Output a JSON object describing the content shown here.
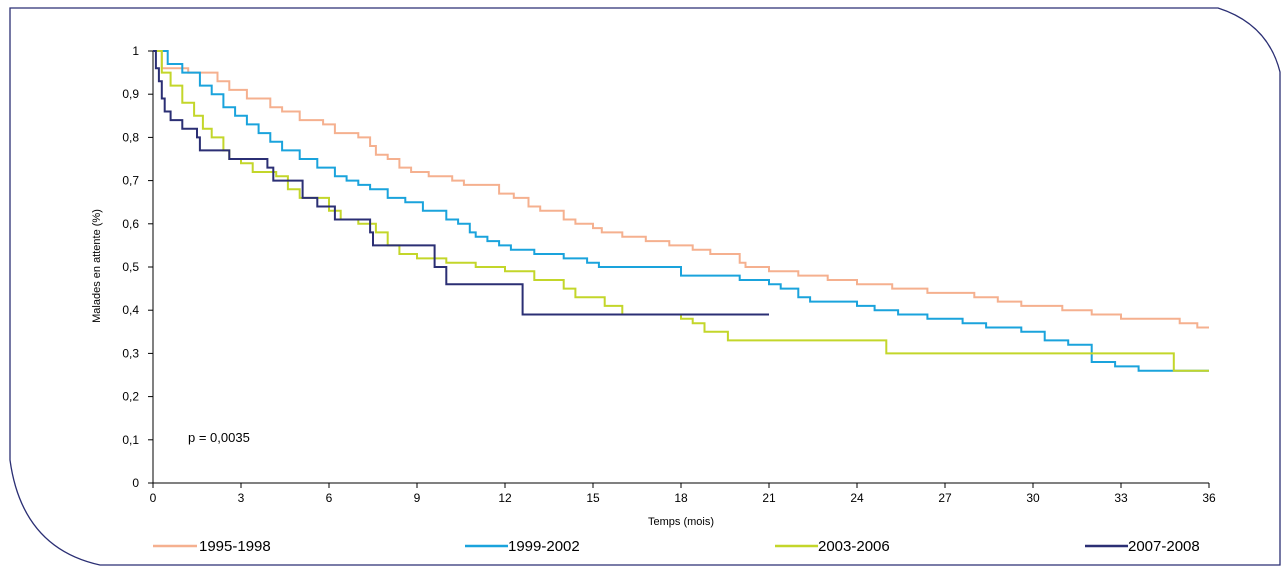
{
  "chart_data": {
    "type": "line",
    "step": true,
    "xlabel": "Temps (mois)",
    "ylabel": "Malades en attente (%)",
    "xlim": [
      0,
      36
    ],
    "ylim": [
      0,
      1
    ],
    "xticks": [
      "0",
      "3",
      "6",
      "9",
      "12",
      "15",
      "18",
      "21",
      "24",
      "27",
      "30",
      "33",
      "36"
    ],
    "yticks": [
      "0",
      "0,1",
      "0,2",
      "0,3",
      "0,4",
      "0,5",
      "0,6",
      "0,7",
      "0,8",
      "0,9",
      "1"
    ],
    "annotation": "p = 0,0035",
    "grid": false,
    "legend_position": "bottom",
    "series": [
      {
        "name": "1995-1998",
        "color": "#f5b08f",
        "points": [
          [
            0,
            1
          ],
          [
            0.3,
            0.96
          ],
          [
            1.2,
            0.95
          ],
          [
            2.2,
            0.93
          ],
          [
            2.6,
            0.91
          ],
          [
            3.2,
            0.89
          ],
          [
            4,
            0.87
          ],
          [
            4.4,
            0.86
          ],
          [
            5,
            0.84
          ],
          [
            5.8,
            0.83
          ],
          [
            6.2,
            0.81
          ],
          [
            7,
            0.8
          ],
          [
            7.4,
            0.78
          ],
          [
            7.6,
            0.76
          ],
          [
            8,
            0.75
          ],
          [
            8.4,
            0.73
          ],
          [
            8.8,
            0.72
          ],
          [
            9.4,
            0.71
          ],
          [
            10.2,
            0.7
          ],
          [
            10.6,
            0.69
          ],
          [
            11.8,
            0.67
          ],
          [
            12.3,
            0.66
          ],
          [
            12.8,
            0.64
          ],
          [
            13.2,
            0.63
          ],
          [
            14,
            0.61
          ],
          [
            14.4,
            0.6
          ],
          [
            15,
            0.59
          ],
          [
            15.3,
            0.58
          ],
          [
            16,
            0.57
          ],
          [
            16.8,
            0.56
          ],
          [
            17.6,
            0.55
          ],
          [
            18.4,
            0.54
          ],
          [
            19,
            0.53
          ],
          [
            20,
            0.51
          ],
          [
            20.2,
            0.5
          ],
          [
            21,
            0.49
          ],
          [
            21.6,
            0.49
          ],
          [
            22,
            0.48
          ],
          [
            23,
            0.47
          ],
          [
            24,
            0.46
          ],
          [
            25.2,
            0.45
          ],
          [
            26.4,
            0.44
          ],
          [
            28,
            0.43
          ],
          [
            28.8,
            0.42
          ],
          [
            29.6,
            0.41
          ],
          [
            31,
            0.4
          ],
          [
            32,
            0.39
          ],
          [
            33,
            0.38
          ],
          [
            35,
            0.37
          ],
          [
            35.6,
            0.36
          ],
          [
            36,
            0.36
          ]
        ]
      },
      {
        "name": "1999-2002",
        "color": "#1aa3dc",
        "points": [
          [
            0,
            1
          ],
          [
            0.5,
            0.97
          ],
          [
            1,
            0.95
          ],
          [
            1.6,
            0.92
          ],
          [
            2,
            0.9
          ],
          [
            2.4,
            0.87
          ],
          [
            2.8,
            0.85
          ],
          [
            3.2,
            0.83
          ],
          [
            3.6,
            0.81
          ],
          [
            4,
            0.79
          ],
          [
            4.4,
            0.77
          ],
          [
            5,
            0.75
          ],
          [
            5.6,
            0.73
          ],
          [
            6.2,
            0.71
          ],
          [
            6.6,
            0.7
          ],
          [
            7,
            0.69
          ],
          [
            7.4,
            0.68
          ],
          [
            8,
            0.66
          ],
          [
            8.6,
            0.65
          ],
          [
            9.2,
            0.63
          ],
          [
            10,
            0.61
          ],
          [
            10.4,
            0.6
          ],
          [
            10.8,
            0.58
          ],
          [
            11,
            0.57
          ],
          [
            11.4,
            0.56
          ],
          [
            11.8,
            0.55
          ],
          [
            12.2,
            0.54
          ],
          [
            13,
            0.53
          ],
          [
            14,
            0.52
          ],
          [
            14.8,
            0.51
          ],
          [
            15.2,
            0.5
          ],
          [
            16,
            0.5
          ],
          [
            18,
            0.48
          ],
          [
            19,
            0.48
          ],
          [
            20,
            0.47
          ],
          [
            21,
            0.46
          ],
          [
            21.4,
            0.45
          ],
          [
            22,
            0.43
          ],
          [
            22.4,
            0.42
          ],
          [
            24,
            0.41
          ],
          [
            24.6,
            0.4
          ],
          [
            25.4,
            0.39
          ],
          [
            26.4,
            0.38
          ],
          [
            27.6,
            0.37
          ],
          [
            28.4,
            0.36
          ],
          [
            29.6,
            0.35
          ],
          [
            30.4,
            0.33
          ],
          [
            31.2,
            0.32
          ],
          [
            32,
            0.28
          ],
          [
            32.8,
            0.27
          ],
          [
            33.6,
            0.26
          ],
          [
            36,
            0.26
          ]
        ]
      },
      {
        "name": "2003-2006",
        "color": "#c3d62a",
        "points": [
          [
            0,
            1
          ],
          [
            0.3,
            0.95
          ],
          [
            0.6,
            0.92
          ],
          [
            1,
            0.88
          ],
          [
            1.4,
            0.85
          ],
          [
            1.7,
            0.82
          ],
          [
            2,
            0.8
          ],
          [
            2.4,
            0.77
          ],
          [
            2.6,
            0.75
          ],
          [
            3,
            0.74
          ],
          [
            3.4,
            0.72
          ],
          [
            4.2,
            0.71
          ],
          [
            4.6,
            0.68
          ],
          [
            5,
            0.66
          ],
          [
            6,
            0.63
          ],
          [
            6.4,
            0.61
          ],
          [
            7,
            0.6
          ],
          [
            7.6,
            0.58
          ],
          [
            8,
            0.55
          ],
          [
            8.4,
            0.53
          ],
          [
            9,
            0.52
          ],
          [
            10,
            0.51
          ],
          [
            11,
            0.5
          ],
          [
            12,
            0.49
          ],
          [
            13,
            0.47
          ],
          [
            14,
            0.45
          ],
          [
            14.4,
            0.43
          ],
          [
            15.4,
            0.41
          ],
          [
            16,
            0.39
          ],
          [
            17,
            0.39
          ],
          [
            18,
            0.38
          ],
          [
            18.4,
            0.37
          ],
          [
            18.8,
            0.35
          ],
          [
            19.6,
            0.33
          ],
          [
            22,
            0.33
          ],
          [
            25,
            0.3
          ],
          [
            34.6,
            0.3
          ],
          [
            34.8,
            0.26
          ],
          [
            36,
            0.26
          ]
        ]
      },
      {
        "name": "2007-2008",
        "color": "#2b2f74",
        "points": [
          [
            0,
            1
          ],
          [
            0.1,
            0.96
          ],
          [
            0.2,
            0.93
          ],
          [
            0.3,
            0.89
          ],
          [
            0.4,
            0.86
          ],
          [
            0.6,
            0.84
          ],
          [
            1,
            0.82
          ],
          [
            1.5,
            0.8
          ],
          [
            1.6,
            0.77
          ],
          [
            2.5,
            0.77
          ],
          [
            2.6,
            0.75
          ],
          [
            3.8,
            0.75
          ],
          [
            3.9,
            0.73
          ],
          [
            4.1,
            0.7
          ],
          [
            5,
            0.7
          ],
          [
            5.1,
            0.66
          ],
          [
            5.6,
            0.64
          ],
          [
            6.2,
            0.61
          ],
          [
            7.3,
            0.61
          ],
          [
            7.4,
            0.58
          ],
          [
            7.5,
            0.55
          ],
          [
            9.5,
            0.55
          ],
          [
            9.6,
            0.5
          ],
          [
            10,
            0.46
          ],
          [
            12.5,
            0.46
          ],
          [
            12.6,
            0.39
          ],
          [
            21,
            0.39
          ]
        ]
      }
    ]
  }
}
